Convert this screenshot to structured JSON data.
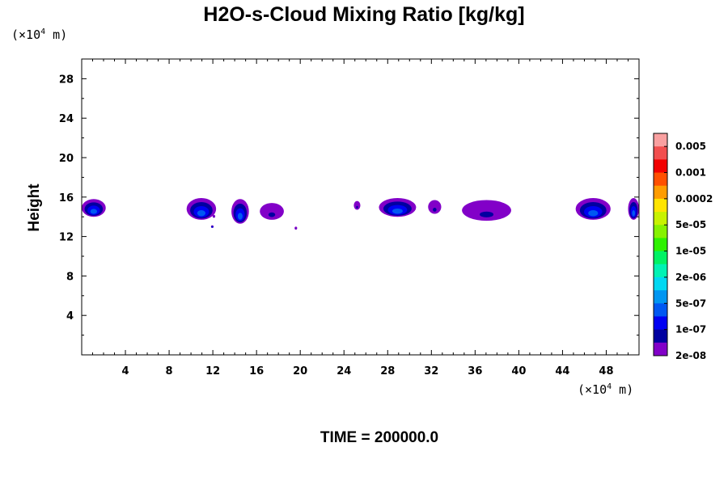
{
  "chart_data": {
    "type": "heatmap",
    "title": "H2O-s-Cloud Mixing Ratio [kg/kg]",
    "ylabel": "Height",
    "x_unit_prefix": "(×10",
    "x_unit_exp": "4",
    "x_unit_suffix": " m)",
    "y_unit_prefix": "(×10",
    "y_unit_exp": "4",
    "y_unit_suffix": " m)",
    "xlim": [
      0,
      51
    ],
    "ylim": [
      0,
      30
    ],
    "x_ticks": [
      4,
      8,
      12,
      16,
      20,
      24,
      28,
      32,
      36,
      40,
      44,
      48
    ],
    "y_ticks": [
      4,
      8,
      12,
      16,
      20,
      24,
      28
    ],
    "x_tick_labels": [
      "4",
      "8",
      "12",
      "16",
      "20",
      "24",
      "28",
      "32",
      "36",
      "40",
      "44",
      "48"
    ],
    "y_tick_labels": [
      "4",
      "8",
      "12",
      "16",
      "20",
      "24",
      "28"
    ],
    "x_minor_step": 1,
    "y_minor_step": 2,
    "colorbar": {
      "colors": [
        "#f9a0a0",
        "#f24f4f",
        "#f20000",
        "#ff5000",
        "#ff9c00",
        "#ffe400",
        "#c8f200",
        "#86f200",
        "#2ef200",
        "#00f264",
        "#00f2b4",
        "#00d8f2",
        "#0096f2",
        "#0058f2",
        "#0000f2",
        "#0000a0",
        "#8200c8"
      ],
      "labels": [
        "0.005",
        "0.001",
        "0.0002",
        "5e-05",
        "1e-05",
        "2e-06",
        "5e-07",
        "1e-07",
        "2e-08"
      ]
    },
    "features": [
      {
        "x": [
          0.0,
          2.2
        ],
        "y": [
          14.0,
          15.8
        ],
        "peak": "5e-07"
      },
      {
        "x": [
          9.6,
          12.3
        ],
        "y": [
          13.7,
          15.9
        ],
        "peak": "5e-07"
      },
      {
        "x": [
          13.7,
          15.3
        ],
        "y": [
          13.3,
          15.8
        ],
        "peak": "5e-07"
      },
      {
        "x": [
          16.3,
          18.5
        ],
        "y": [
          13.7,
          15.4
        ],
        "peak": "1e-07"
      },
      {
        "x": [
          24.9,
          25.5
        ],
        "y": [
          14.7,
          15.6
        ],
        "peak": "1e-07"
      },
      {
        "x": [
          27.2,
          30.6
        ],
        "y": [
          14.0,
          15.9
        ],
        "peak": "5e-07"
      },
      {
        "x": [
          31.7,
          32.9
        ],
        "y": [
          14.3,
          15.7
        ],
        "peak": "1e-07"
      },
      {
        "x": [
          34.8,
          39.3
        ],
        "y": [
          13.6,
          15.7
        ],
        "peak": "1e-07"
      },
      {
        "x": [
          45.2,
          48.4
        ],
        "y": [
          13.7,
          15.9
        ],
        "peak": "5e-07"
      },
      {
        "x": [
          50.0,
          51.0
        ],
        "y": [
          13.7,
          15.9
        ],
        "peak": "5e-07"
      },
      {
        "x": [
          11.9,
          12.0
        ],
        "y": [
          12.9,
          13.1
        ],
        "peak": "5e-07"
      },
      {
        "x": [
          12.0,
          12.2
        ],
        "y": [
          13.9,
          14.2
        ],
        "peak": "1e-07"
      },
      {
        "x": [
          19.5,
          19.7
        ],
        "y": [
          12.7,
          13.0
        ],
        "peak": "1e-07"
      }
    ]
  },
  "footer": {
    "time_label": "TIME = 200000.0"
  }
}
